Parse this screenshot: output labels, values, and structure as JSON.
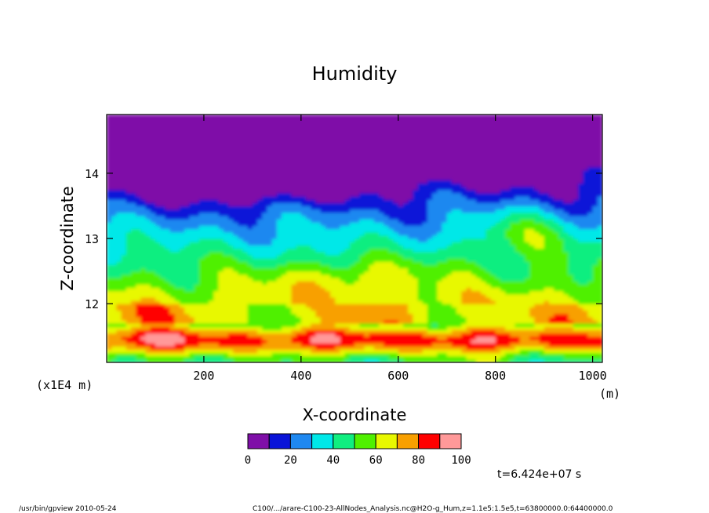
{
  "chart_data": {
    "type": "heatmap",
    "title": "Humidity",
    "xlabel": "X-coordinate",
    "ylabel": "Z-coordinate",
    "x_unit": "(m)",
    "y_unit": "(x1E4 m)",
    "xlim": [
      0,
      1020
    ],
    "ylim": [
      11.1,
      14.9
    ],
    "x_ticks": [
      200,
      400,
      600,
      800,
      1000
    ],
    "x_tick_labels": [
      "200",
      "400",
      "600",
      "800",
      "1000"
    ],
    "y_ticks": [
      12,
      13,
      14
    ],
    "y_tick_labels": [
      "12",
      "13",
      "14"
    ],
    "colorbar": {
      "bounds": [
        0,
        10,
        20,
        30,
        40,
        50,
        60,
        70,
        80,
        90,
        100
      ],
      "tick_values": [
        0,
        20,
        40,
        60,
        80,
        100
      ],
      "tick_labels": [
        "0",
        "20",
        "40",
        "60",
        "80",
        "100"
      ],
      "colors": [
        "#7f0fa8",
        "#0a14d8",
        "#1e88f0",
        "#00e8e8",
        "#10ee80",
        "#50f000",
        "#e8f800",
        "#f8a000",
        "#ff0000",
        "#ff9999"
      ]
    },
    "time_label": "t=6.424e+07 s",
    "grid": false,
    "legend": "colorbar bottom-center"
  },
  "footer": {
    "left": "/usr/bin/gpview  2010-05-24",
    "right": "C100/.../arare-C100-23-AllNodes_Analysis.nc@H2O-g_Hum,z=1.1e5:1.5e5,t=63800000.0:64400000.0"
  }
}
